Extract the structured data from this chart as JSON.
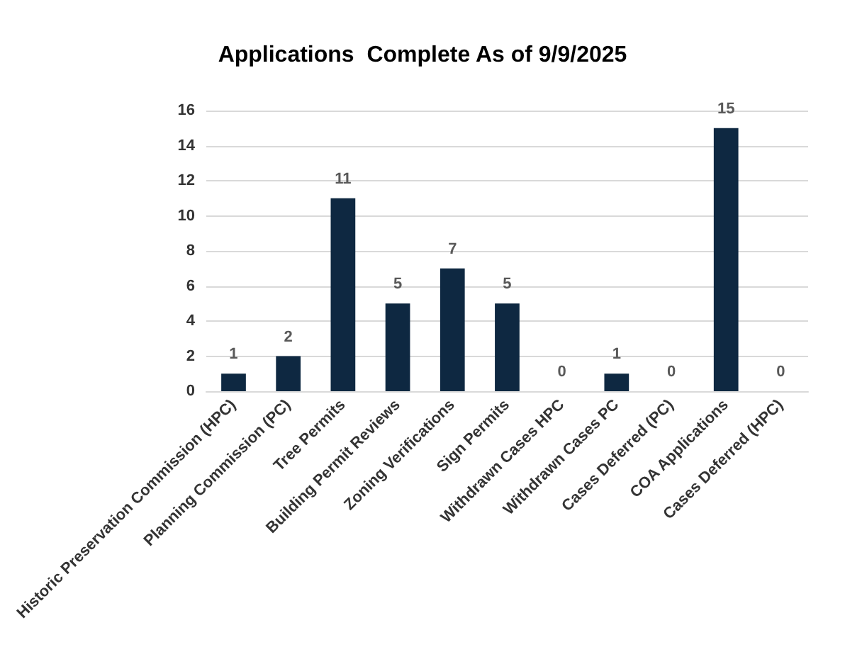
{
  "chart_data": {
    "type": "bar",
    "title": "Applications  Complete As of 9/9/2025",
    "categories": [
      "Historic Preservation Commission (HPC)",
      "Planning Commission (PC)",
      "Tree Permits",
      "Building Permit Reviews",
      "Zoning Verifications",
      "Sign Permits",
      "Withdrawn Cases HPC",
      "Withdrawn Cases PC",
      "Cases Deferred (PC)",
      "COA Applications",
      "Cases Deferred (HPC)"
    ],
    "values": [
      1,
      2,
      11,
      5,
      7,
      5,
      0,
      1,
      0,
      15,
      0
    ],
    "color": "#0e2841",
    "ylim": [
      0,
      16
    ],
    "yticks": [
      0,
      2,
      4,
      6,
      8,
      10,
      12,
      14,
      16
    ],
    "grid": "y",
    "data_labels": true
  }
}
